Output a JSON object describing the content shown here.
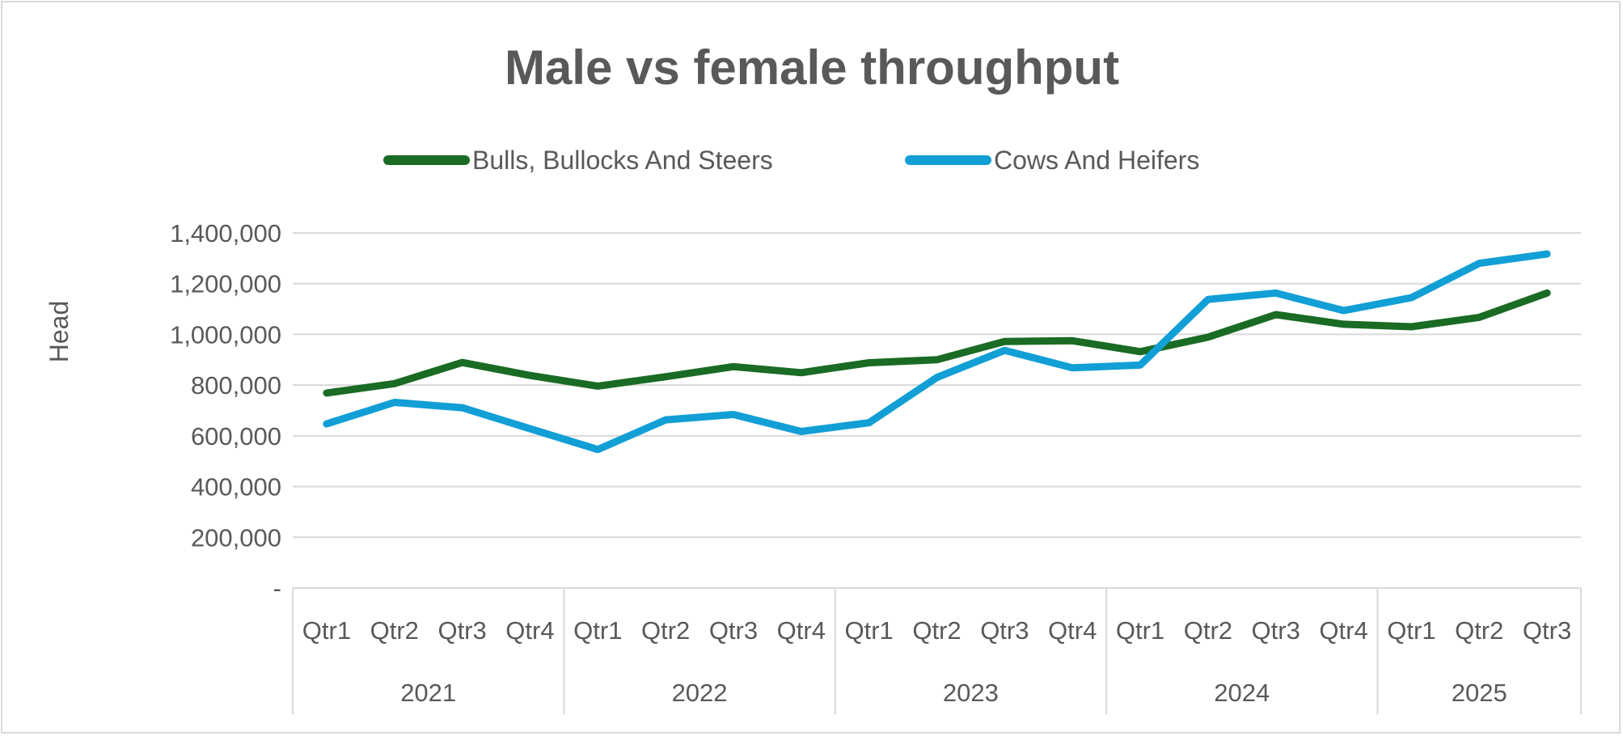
{
  "chart_data": {
    "type": "line",
    "title": "Male vs female throughput",
    "xlabel": "",
    "ylabel": "Head",
    "ylim": [
      0,
      1400000
    ],
    "yticks": [
      0,
      200000,
      400000,
      600000,
      800000,
      1000000,
      1200000,
      1400000
    ],
    "ytick_labels": [
      "-",
      "200,000",
      "400,000",
      "600,000",
      "800,000",
      "1,000,000",
      "1,200,000",
      "1,400,000"
    ],
    "grid": true,
    "legend_position": "top",
    "groups": [
      {
        "label": "2021",
        "categories": [
          "Qtr1",
          "Qtr2",
          "Qtr3",
          "Qtr4"
        ]
      },
      {
        "label": "2022",
        "categories": [
          "Qtr1",
          "Qtr2",
          "Qtr3",
          "Qtr4"
        ]
      },
      {
        "label": "2023",
        "categories": [
          "Qtr1",
          "Qtr2",
          "Qtr3",
          "Qtr4"
        ]
      },
      {
        "label": "2024",
        "categories": [
          "Qtr1",
          "Qtr2",
          "Qtr3",
          "Qtr4"
        ]
      },
      {
        "label": "2025",
        "categories": [
          "Qtr1",
          "Qtr2",
          "Qtr3"
        ]
      }
    ],
    "series": [
      {
        "name": "Bulls, Bullocks And Steers",
        "color": "#1a6b23",
        "values": [
          769000,
          806000,
          889000,
          838000,
          796000,
          833000,
          873000,
          849000,
          888000,
          900000,
          972000,
          975000,
          932000,
          989000,
          1078000,
          1040000,
          1030000,
          1067000,
          1163000
        ]
      },
      {
        "name": "Cows And Heifers",
        "color": "#119fd6",
        "values": [
          647000,
          732000,
          711000,
          628000,
          546000,
          663000,
          684000,
          617000,
          652000,
          830000,
          937000,
          868000,
          879000,
          1138000,
          1163000,
          1094000,
          1145000,
          1280000,
          1317000
        ]
      }
    ]
  },
  "colors": {
    "text": "#595959",
    "grid": "#d9d9d9"
  }
}
